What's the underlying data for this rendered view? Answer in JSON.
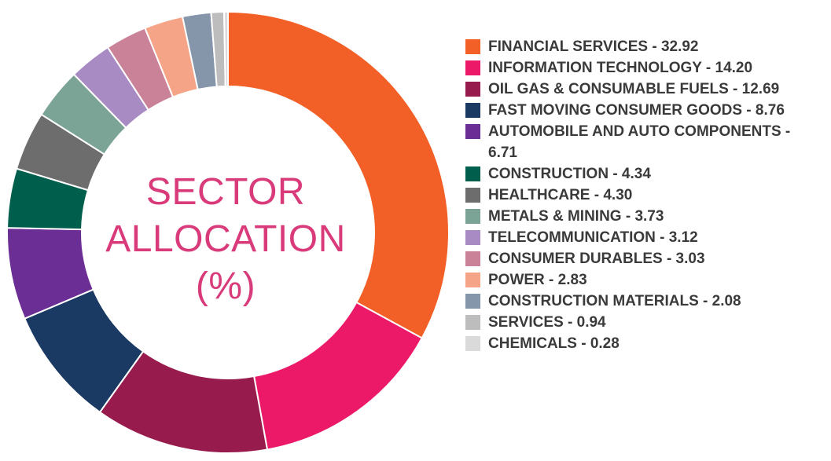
{
  "chart_data": {
    "type": "pie",
    "title": [
      "SECTOR",
      "ALLOCATION",
      "(%)"
    ],
    "legend_position": "right",
    "series": [
      {
        "name": "FINANCIAL SERVICES",
        "value": 32.92,
        "label": "FINANCIAL SERVICES - 32.92",
        "color": "#f26028"
      },
      {
        "name": "INFORMATION TECHNOLOGY",
        "value": 14.2,
        "label": "INFORMATION TECHNOLOGY - 14.20",
        "color": "#ec1868"
      },
      {
        "name": "OIL GAS & CONSUMABLE FUELS",
        "value": 12.69,
        "label": "OIL GAS & CONSUMABLE FUELS - 12.69",
        "color": "#981b4e"
      },
      {
        "name": "FAST MOVING CONSUMER GOODS",
        "value": 8.76,
        "label": "FAST MOVING CONSUMER GOODS - 8.76",
        "color": "#1b3a63"
      },
      {
        "name": "AUTOMOBILE AND AUTO COMPONENTS",
        "value": 6.71,
        "label": "AUTOMOBILE AND AUTO COMPONENTS - 6.71",
        "color": "#6b2e94"
      },
      {
        "name": "CONSTRUCTION",
        "value": 4.34,
        "label": "CONSTRUCTION - 4.34",
        "color": "#005e4c"
      },
      {
        "name": "HEALTHCARE",
        "value": 4.3,
        "label": "HEALTHCARE - 4.30",
        "color": "#6d6d6d"
      },
      {
        "name": "METALS & MINING",
        "value": 3.73,
        "label": "METALS & MINING - 3.73",
        "color": "#7ba396"
      },
      {
        "name": "TELECOMMUNICATION",
        "value": 3.12,
        "label": "TELECOMMUNICATION - 3.12",
        "color": "#a98bc4"
      },
      {
        "name": "CONSUMER DURABLES",
        "value": 3.03,
        "label": "CONSUMER DURABLES - 3.03",
        "color": "#c98297"
      },
      {
        "name": "POWER",
        "value": 2.83,
        "label": "POWER - 2.83",
        "color": "#f6a487"
      },
      {
        "name": "CONSTRUCTION MATERIALS",
        "value": 2.08,
        "label": "CONSTRUCTION MATERIALS - 2.08",
        "color": "#8596aa"
      },
      {
        "name": "SERVICES",
        "value": 0.94,
        "label": "SERVICES - 0.94",
        "color": "#bdbdbd"
      },
      {
        "name": "CHEMICALS",
        "value": 0.28,
        "label": "CHEMICALS - 0.28",
        "color": "#dadada"
      }
    ]
  }
}
